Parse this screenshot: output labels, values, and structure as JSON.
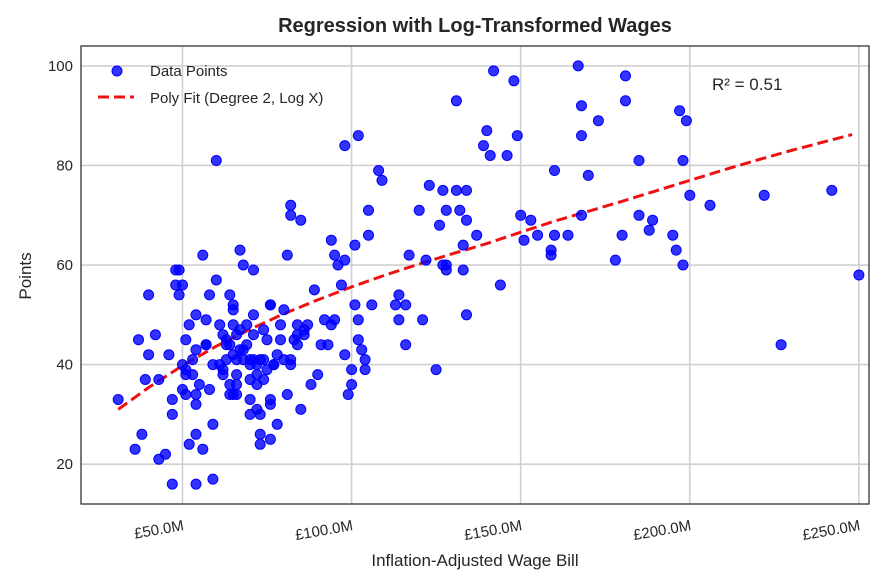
{
  "chart_data": {
    "type": "scatter",
    "title": "Regression with Log-Transformed Wages",
    "xlabel": "Inflation-Adjusted Wage Bill",
    "ylabel": "Points",
    "xlim": [
      20,
      253
    ],
    "ylim": [
      12,
      104
    ],
    "x_ticks": [
      {
        "value": 50,
        "label": "£50.0M"
      },
      {
        "value": 100,
        "label": "£100.0M"
      },
      {
        "value": 150,
        "label": "£150.0M"
      },
      {
        "value": 200,
        "label": "£200.0M"
      },
      {
        "value": 250,
        "label": "£250.0M"
      }
    ],
    "y_ticks": [
      20,
      40,
      60,
      80,
      100
    ],
    "grid": true,
    "legend_position": "top-left",
    "annotation": "R² = 0.51",
    "colors": {
      "points": "#0000ff",
      "fit": "#ee1111",
      "grid": "#d0d0d0",
      "frame": "#333333"
    },
    "series": [
      {
        "name": "Data Points",
        "kind": "scatter",
        "points": [
          [
            31,
            33
          ],
          [
            36,
            23
          ],
          [
            37,
            45
          ],
          [
            38,
            26
          ],
          [
            39,
            37
          ],
          [
            40,
            42
          ],
          [
            40,
            54
          ],
          [
            42,
            46
          ],
          [
            43,
            37
          ],
          [
            43,
            21
          ],
          [
            45,
            22
          ],
          [
            46,
            42
          ],
          [
            47,
            16
          ],
          [
            47,
            30
          ],
          [
            47,
            33
          ],
          [
            48,
            56
          ],
          [
            48,
            59
          ],
          [
            49,
            59
          ],
          [
            49,
            54
          ],
          [
            50,
            56
          ],
          [
            50,
            40
          ],
          [
            50,
            35
          ],
          [
            51,
            38
          ],
          [
            51,
            34
          ],
          [
            51,
            39
          ],
          [
            51,
            45
          ],
          [
            52,
            24
          ],
          [
            52,
            48
          ],
          [
            53,
            41
          ],
          [
            53,
            38
          ],
          [
            54,
            26
          ],
          [
            54,
            34
          ],
          [
            54,
            32
          ],
          [
            54,
            43
          ],
          [
            54,
            16
          ],
          [
            54,
            50
          ],
          [
            55,
            36
          ],
          [
            56,
            62
          ],
          [
            56,
            23
          ],
          [
            57,
            49
          ],
          [
            57,
            44
          ],
          [
            57,
            44
          ],
          [
            58,
            35
          ],
          [
            58,
            54
          ],
          [
            59,
            17
          ],
          [
            59,
            28
          ],
          [
            59,
            40
          ],
          [
            60,
            57
          ],
          [
            60,
            81
          ],
          [
            61,
            48
          ],
          [
            61,
            40
          ],
          [
            62,
            39
          ],
          [
            62,
            38
          ],
          [
            62,
            46
          ],
          [
            63,
            45
          ],
          [
            63,
            44
          ],
          [
            63,
            41
          ],
          [
            64,
            44
          ],
          [
            64,
            36
          ],
          [
            64,
            34
          ],
          [
            64,
            54
          ],
          [
            65,
            48
          ],
          [
            65,
            42
          ],
          [
            65,
            34
          ],
          [
            65,
            52
          ],
          [
            65,
            51
          ],
          [
            66,
            46
          ],
          [
            66,
            41
          ],
          [
            66,
            38
          ],
          [
            66,
            36
          ],
          [
            66,
            34
          ],
          [
            67,
            63
          ],
          [
            67,
            47
          ],
          [
            67,
            43
          ],
          [
            68,
            60
          ],
          [
            68,
            41
          ],
          [
            68,
            43
          ],
          [
            69,
            44
          ],
          [
            69,
            48
          ],
          [
            70,
            33
          ],
          [
            70,
            41
          ],
          [
            70,
            40
          ],
          [
            70,
            37
          ],
          [
            70,
            30
          ],
          [
            71,
            59
          ],
          [
            71,
            50
          ],
          [
            71,
            41
          ],
          [
            71,
            46
          ],
          [
            72,
            40
          ],
          [
            72,
            38
          ],
          [
            72,
            36
          ],
          [
            72,
            31
          ],
          [
            73,
            30
          ],
          [
            73,
            24
          ],
          [
            73,
            26
          ],
          [
            73,
            41
          ],
          [
            74,
            41
          ],
          [
            74,
            37
          ],
          [
            74,
            47
          ],
          [
            75,
            39
          ],
          [
            75,
            45
          ],
          [
            76,
            32
          ],
          [
            76,
            25
          ],
          [
            76,
            33
          ],
          [
            76,
            52
          ],
          [
            76,
            52
          ],
          [
            77,
            40
          ],
          [
            77,
            40
          ],
          [
            78,
            42
          ],
          [
            78,
            28
          ],
          [
            79,
            48
          ],
          [
            79,
            45
          ],
          [
            80,
            51
          ],
          [
            80,
            41
          ],
          [
            81,
            62
          ],
          [
            81,
            34
          ],
          [
            82,
            72
          ],
          [
            82,
            70
          ],
          [
            82,
            40
          ],
          [
            82,
            41
          ],
          [
            83,
            45
          ],
          [
            84,
            44
          ],
          [
            84,
            46
          ],
          [
            84,
            48
          ],
          [
            85,
            31
          ],
          [
            85,
            69
          ],
          [
            86,
            47
          ],
          [
            86,
            46
          ],
          [
            87,
            48
          ],
          [
            88,
            36
          ],
          [
            89,
            55
          ],
          [
            90,
            38
          ],
          [
            91,
            44
          ],
          [
            92,
            49
          ],
          [
            93,
            44
          ],
          [
            94,
            65
          ],
          [
            94,
            48
          ],
          [
            95,
            62
          ],
          [
            95,
            49
          ],
          [
            96,
            60
          ],
          [
            97,
            56
          ],
          [
            98,
            61
          ],
          [
            98,
            84
          ],
          [
            98,
            42
          ],
          [
            99,
            34
          ],
          [
            100,
            36
          ],
          [
            100,
            39
          ],
          [
            101,
            64
          ],
          [
            101,
            52
          ],
          [
            102,
            49
          ],
          [
            102,
            45
          ],
          [
            102,
            86
          ],
          [
            103,
            43
          ],
          [
            104,
            39
          ],
          [
            104,
            41
          ],
          [
            105,
            66
          ],
          [
            105,
            71
          ],
          [
            106,
            52
          ],
          [
            108,
            79
          ],
          [
            109,
            77
          ],
          [
            113,
            52
          ],
          [
            114,
            54
          ],
          [
            114,
            49
          ],
          [
            116,
            52
          ],
          [
            116,
            44
          ],
          [
            117,
            62
          ],
          [
            120,
            71
          ],
          [
            121,
            49
          ],
          [
            122,
            61
          ],
          [
            123,
            76
          ],
          [
            125,
            39
          ],
          [
            126,
            68
          ],
          [
            127,
            75
          ],
          [
            127,
            60
          ],
          [
            128,
            59
          ],
          [
            128,
            60
          ],
          [
            128,
            71
          ],
          [
            131,
            75
          ],
          [
            131,
            93
          ],
          [
            132,
            71
          ],
          [
            133,
            64
          ],
          [
            133,
            59
          ],
          [
            134,
            75
          ],
          [
            134,
            69
          ],
          [
            134,
            50
          ],
          [
            137,
            66
          ],
          [
            139,
            84
          ],
          [
            140,
            87
          ],
          [
            141,
            82
          ],
          [
            142,
            99
          ],
          [
            144,
            56
          ],
          [
            146,
            82
          ],
          [
            148,
            97
          ],
          [
            149,
            86
          ],
          [
            150,
            70
          ],
          [
            151,
            65
          ],
          [
            153,
            69
          ],
          [
            155,
            66
          ],
          [
            159,
            62
          ],
          [
            159,
            63
          ],
          [
            160,
            79
          ],
          [
            160,
            66
          ],
          [
            164,
            66
          ],
          [
            167,
            100
          ],
          [
            168,
            92
          ],
          [
            168,
            86
          ],
          [
            168,
            70
          ],
          [
            170,
            78
          ],
          [
            173,
            89
          ],
          [
            178,
            61
          ],
          [
            180,
            66
          ],
          [
            181,
            93
          ],
          [
            181,
            98
          ],
          [
            185,
            81
          ],
          [
            185,
            70
          ],
          [
            188,
            67
          ],
          [
            189,
            69
          ],
          [
            195,
            66
          ],
          [
            196,
            63
          ],
          [
            197,
            91
          ],
          [
            198,
            81
          ],
          [
            198,
            60
          ],
          [
            199,
            89
          ],
          [
            200,
            74
          ],
          [
            206,
            72
          ],
          [
            222,
            74
          ],
          [
            227,
            44
          ],
          [
            242,
            75
          ],
          [
            250,
            58
          ]
        ]
      },
      {
        "name": "Poly Fit (Degree 2, Log X)",
        "kind": "line",
        "x": [
          31,
          40,
          50,
          60,
          70,
          80,
          90,
          100,
          110,
          120,
          130,
          140,
          150,
          160,
          170,
          180,
          190,
          200,
          210,
          220,
          230,
          240,
          248
        ],
        "y": [
          31.0,
          35.4,
          39.8,
          43.7,
          47.1,
          50.2,
          53.0,
          55.6,
          58.0,
          60.2,
          62.3,
          64.3,
          66.6,
          68.8,
          70.8,
          72.8,
          74.9,
          77.0,
          79.1,
          81.1,
          83.0,
          84.8,
          86.2
        ]
      }
    ]
  }
}
